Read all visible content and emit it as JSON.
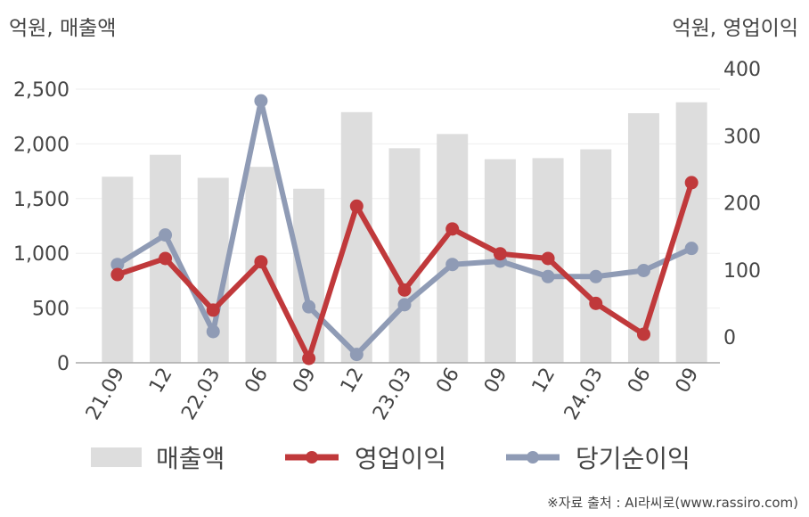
{
  "left_unit": "억원, 매출액",
  "right_unit": "억원, 영업이익",
  "source": "※자료 출처 : AI라씨로(www.rassiro.com)",
  "chart_data": {
    "type": "bar",
    "categories": [
      "21.09",
      "12",
      "22.03",
      "06",
      "09",
      "12",
      "23.03",
      "06",
      "09",
      "12",
      "24.03",
      "06",
      "09"
    ],
    "series": [
      {
        "name": "매출액",
        "type": "bar",
        "axis": "left",
        "color": "#dddddd",
        "values": [
          1700,
          1900,
          1690,
          1790,
          1590,
          2290,
          1960,
          2090,
          1860,
          1870,
          1950,
          2280,
          2380
        ]
      },
      {
        "name": "영업이익",
        "type": "line",
        "axis": "right",
        "color": "#c0393b",
        "values": [
          93,
          117,
          40,
          112,
          -32,
          195,
          70,
          161,
          124,
          117,
          50,
          4,
          230
        ]
      },
      {
        "name": "당기순이익",
        "type": "line",
        "axis": "right",
        "color": "#8f9bb5",
        "values": [
          108,
          152,
          8,
          352,
          45,
          -26,
          48,
          108,
          113,
          90,
          90,
          99,
          132
        ]
      }
    ],
    "left_axis": {
      "min": 0,
      "max": 2500,
      "ticks": [
        0,
        500,
        1000,
        1500,
        2000,
        2500
      ],
      "tick_labels": [
        "0",
        "500",
        "1,000",
        "1,500",
        "2,000",
        "2,500"
      ]
    },
    "right_axis": {
      "min": -40,
      "max": 400,
      "ticks": [
        0,
        100,
        200,
        300,
        400
      ],
      "tick_labels": [
        "0",
        "100",
        "200",
        "300",
        "400"
      ]
    },
    "grid": true,
    "legend_position": "bottom"
  }
}
